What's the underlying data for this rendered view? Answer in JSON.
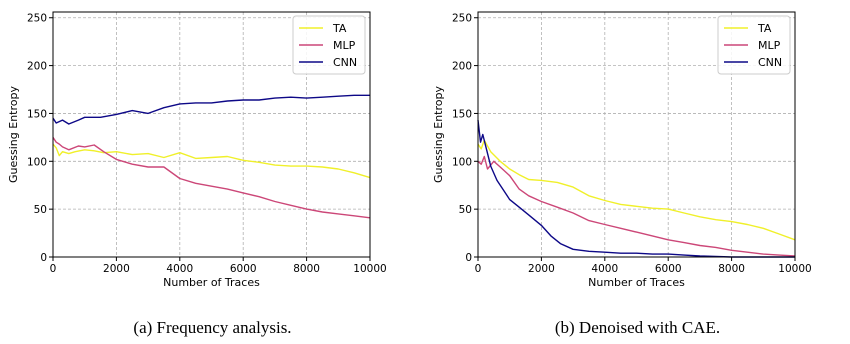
{
  "colors": {
    "TA": "#f0f02a",
    "MLP": "#cc4778",
    "CNN": "#0d0887"
  },
  "chart_data": [
    {
      "type": "line",
      "caption": "(a) Frequency analysis.",
      "xlabel": "Number of Traces",
      "ylabel": "Guessing Entropy",
      "xlim": [
        0,
        10000
      ],
      "ylim": [
        0,
        256
      ],
      "xticks": [
        0,
        2000,
        4000,
        6000,
        8000,
        10000
      ],
      "yticks": [
        0,
        50,
        100,
        150,
        200,
        250
      ],
      "grid": true,
      "legend_position": "top-right",
      "series": [
        {
          "name": "TA",
          "color": "#f0f02a",
          "x": [
            0,
            100,
            200,
            300,
            500,
            700,
            1000,
            1300,
            1600,
            2000,
            2500,
            3000,
            3500,
            4000,
            4500,
            5000,
            5500,
            6000,
            6500,
            7000,
            7500,
            8000,
            8500,
            9000,
            9500,
            10000
          ],
          "y": [
            118,
            114,
            106,
            110,
            108,
            110,
            112,
            111,
            109,
            110,
            107,
            108,
            104,
            109,
            103,
            104,
            105,
            101,
            99,
            96,
            95,
            95,
            94,
            92,
            88,
            83
          ]
        },
        {
          "name": "MLP",
          "color": "#cc4778",
          "x": [
            0,
            100,
            200,
            300,
            500,
            800,
            1000,
            1300,
            1600,
            2000,
            2500,
            3000,
            3500,
            4000,
            4500,
            5000,
            5500,
            6000,
            6500,
            7000,
            7500,
            8000,
            8500,
            9000,
            9500,
            10000
          ],
          "y": [
            125,
            120,
            118,
            115,
            112,
            116,
            115,
            117,
            110,
            102,
            97,
            94,
            94,
            82,
            77,
            74,
            71,
            67,
            63,
            58,
            54,
            50,
            47,
            45,
            43,
            41
          ]
        },
        {
          "name": "CNN",
          "color": "#0d0887",
          "x": [
            0,
            100,
            300,
            500,
            800,
            1000,
            1500,
            2000,
            2500,
            3000,
            3500,
            4000,
            4500,
            5000,
            5500,
            6000,
            6500,
            7000,
            7500,
            8000,
            8500,
            9000,
            9500,
            10000
          ],
          "y": [
            145,
            140,
            143,
            139,
            143,
            146,
            146,
            149,
            153,
            150,
            156,
            160,
            161,
            161,
            163,
            164,
            164,
            166,
            167,
            166,
            167,
            168,
            169,
            169
          ]
        }
      ]
    },
    {
      "type": "line",
      "caption": "(b) Denoised with CAE.",
      "xlabel": "Number of Traces",
      "ylabel": "Guessing Entropy",
      "xlim": [
        0,
        10000
      ],
      "ylim": [
        0,
        256
      ],
      "xticks": [
        0,
        2000,
        4000,
        6000,
        8000,
        10000
      ],
      "yticks": [
        0,
        50,
        100,
        150,
        200,
        250
      ],
      "grid": true,
      "legend_position": "top-right",
      "series": [
        {
          "name": "TA",
          "color": "#f0f02a",
          "x": [
            0,
            100,
            200,
            400,
            700,
            1000,
            1300,
            1600,
            2000,
            2500,
            3000,
            3500,
            4000,
            4500,
            5000,
            5500,
            6000,
            6500,
            7000,
            7500,
            8000,
            8500,
            9000,
            9500,
            10000
          ],
          "y": [
            118,
            113,
            122,
            110,
            100,
            92,
            86,
            81,
            80,
            78,
            73,
            64,
            59,
            55,
            53,
            51,
            50,
            46,
            42,
            39,
            37,
            34,
            30,
            24,
            18
          ]
        },
        {
          "name": "MLP",
          "color": "#cc4778",
          "x": [
            0,
            100,
            200,
            300,
            500,
            700,
            1000,
            1300,
            1600,
            2000,
            2500,
            3000,
            3500,
            4000,
            4500,
            5000,
            5500,
            6000,
            6500,
            7000,
            7500,
            8000,
            8500,
            9000,
            9500,
            10000
          ],
          "y": [
            100,
            97,
            105,
            92,
            100,
            94,
            85,
            71,
            64,
            58,
            52,
            46,
            38,
            34,
            30,
            26,
            22,
            18,
            15,
            12,
            10,
            7,
            5,
            3,
            2,
            1
          ]
        },
        {
          "name": "CNN",
          "color": "#0d0887",
          "x": [
            0,
            80,
            150,
            250,
            400,
            600,
            800,
            1000,
            1300,
            1600,
            2000,
            2300,
            2600,
            3000,
            3500,
            4000,
            4500,
            5000,
            5500,
            6000,
            6500,
            7000,
            8000,
            9000,
            10000
          ],
          "y": [
            143,
            120,
            128,
            115,
            95,
            80,
            70,
            60,
            52,
            44,
            33,
            22,
            14,
            8,
            6,
            5,
            4,
            4,
            3,
            3,
            2,
            1,
            0,
            0,
            0
          ]
        }
      ]
    }
  ]
}
